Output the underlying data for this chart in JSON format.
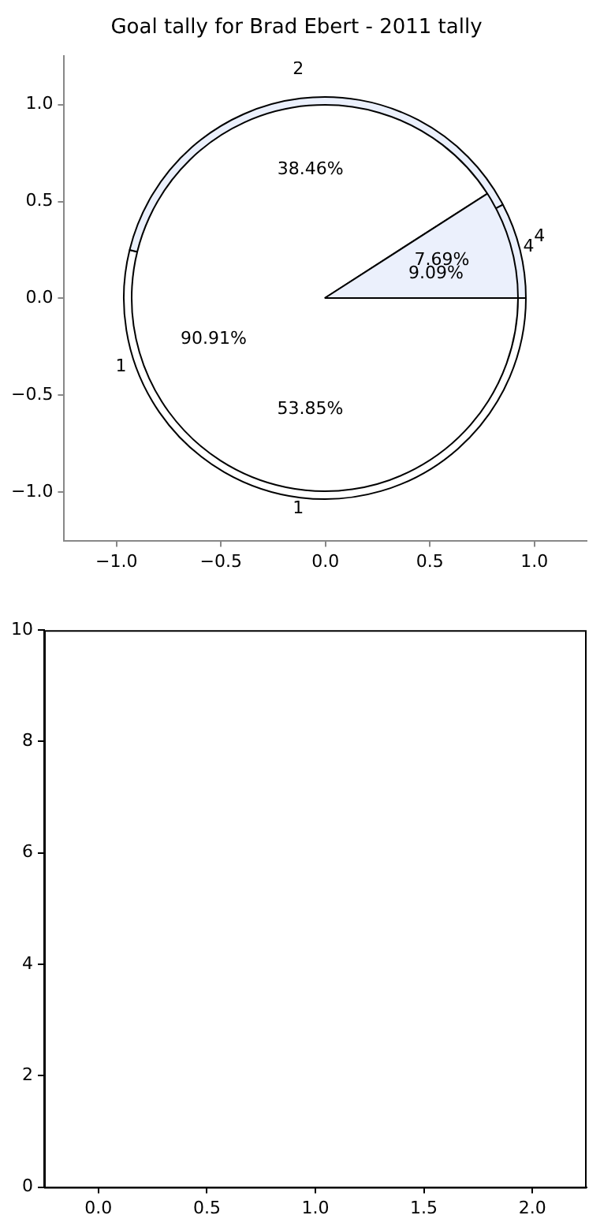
{
  "chart_data": [
    {
      "type": "scatter",
      "title": "Goal tally for Brad Ebert - 2011 tally",
      "xlim": [
        -1.25,
        1.25
      ],
      "ylim": [
        -1.25,
        1.25
      ],
      "xticks": [
        {
          "value": -1,
          "label": "−1.0"
        },
        {
          "value": -0.5,
          "label": "−0.5"
        },
        {
          "value": 0,
          "label": "0.0"
        },
        {
          "value": 0.5,
          "label": "0.5"
        },
        {
          "value": 1,
          "label": "1.0"
        }
      ],
      "yticks": [
        {
          "value": -1,
          "label": "−1.0"
        },
        {
          "value": -0.5,
          "label": "−0.5"
        },
        {
          "value": 0,
          "label": "0.0"
        },
        {
          "value": 0.5,
          "label": "0.5"
        },
        {
          "value": 1,
          "label": "1.0"
        }
      ],
      "grid": false,
      "legend": false
    },
    {
      "type": "pie",
      "categories": [
        "1",
        "2",
        "4"
      ],
      "values": [
        53.85,
        38.46,
        7.69
      ],
      "colors": [
        "#ffffff",
        "#ebf0fc",
        "#ebf0fc"
      ],
      "value_labels": [
        "53.85%",
        "38.46%",
        "7.69%"
      ],
      "legend": false
    },
    {
      "type": "pie",
      "categories": [
        "1",
        "4"
      ],
      "values": [
        90.91,
        9.09
      ],
      "colors": [
        "#ffffff",
        "#ebf0fc"
      ],
      "value_labels": [
        "90.91%",
        "9.09%"
      ],
      "legend": false
    },
    {
      "type": "scatter",
      "xlim": [
        -0.25,
        2.25
      ],
      "ylim": [
        0,
        10
      ],
      "xticks": [
        {
          "value": 0,
          "label": "0.0"
        },
        {
          "value": 0.5,
          "label": "0.5"
        },
        {
          "value": 1,
          "label": "1.0"
        },
        {
          "value": 1.5,
          "label": "1.5"
        },
        {
          "value": 2,
          "label": "2.0"
        }
      ],
      "yticks": [
        0,
        2,
        4,
        6,
        8,
        10
      ],
      "grid": false,
      "legend": false
    }
  ]
}
